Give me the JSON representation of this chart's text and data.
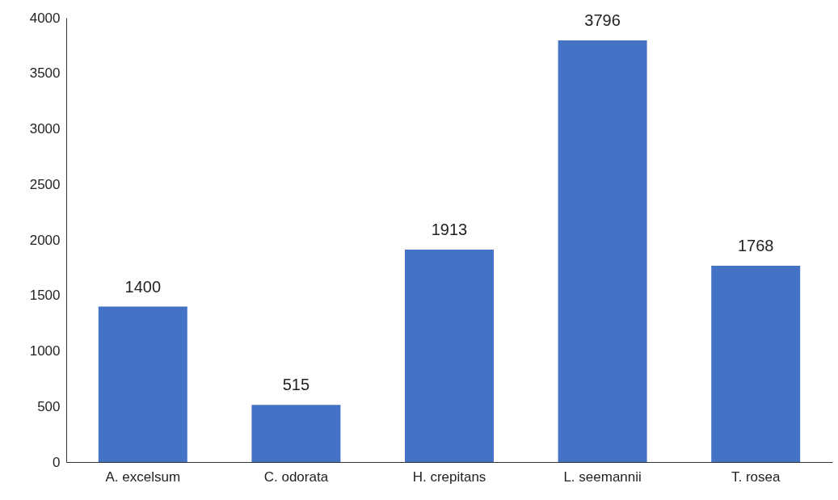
{
  "chart_data": {
    "type": "bar",
    "categories": [
      "A. excelsum",
      "C. odorata",
      "H. crepitans",
      "L. seemannii",
      "T. rosea"
    ],
    "values": [
      1400,
      515,
      1913,
      3796,
      1768
    ],
    "color": "#4472c4",
    "ylim": [
      0,
      4000
    ],
    "yticks": [
      0,
      500,
      1000,
      1500,
      2000,
      2500,
      3000,
      3500,
      4000
    ],
    "data_labels": true
  }
}
